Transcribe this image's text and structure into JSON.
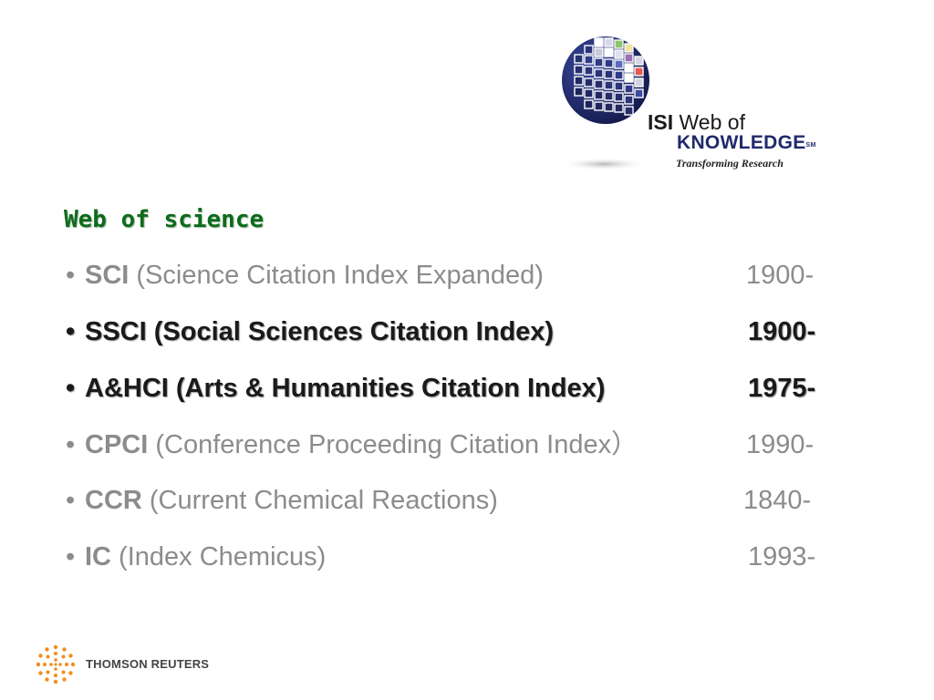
{
  "logo": {
    "isi": "ISI",
    "web_of": "Web of",
    "knowledge": "KNOWLEDGE",
    "trademark": "SM",
    "tagline": "Transforming Research",
    "icon": "globe-icon",
    "colors": {
      "globe_dark": "#1f2a6b",
      "knowledge_text": "#1f2a6b"
    }
  },
  "heading": "Web of science",
  "indexes": [
    {
      "abbr": "SCI",
      "rest": " (Science Citation Index Expanded)",
      "year": "1900-",
      "style": "gray"
    },
    {
      "abbr": "SSCI",
      "rest": " (Social Sciences Citation Index)",
      "year": "1900-",
      "style": "dark"
    },
    {
      "abbr": "A&HCI",
      "rest": " (Arts & Humanities Citation Index)",
      "year": "1975-",
      "style": "dark"
    },
    {
      "abbr": "CPCI",
      "rest": " (Conference Proceeding Citation Index）",
      "year": "1990-",
      "style": "gray"
    },
    {
      "abbr": "CCR",
      "rest": " (Current Chemical Reactions)",
      "year": "1840-",
      "style": "gray"
    },
    {
      "abbr": "IC",
      "rest": " (Index Chemicus)",
      "year": "1993-",
      "style": "gray"
    }
  ],
  "bullet": "•",
  "footer": {
    "brand": "THOMSON REUTERS",
    "icon": "thomson-reuters-dots-icon",
    "color": "#f28c1e"
  },
  "colors": {
    "heading": "#0e6b1c",
    "gray_text": "#8c8c8c",
    "dark_text": "#1a1a1a"
  }
}
